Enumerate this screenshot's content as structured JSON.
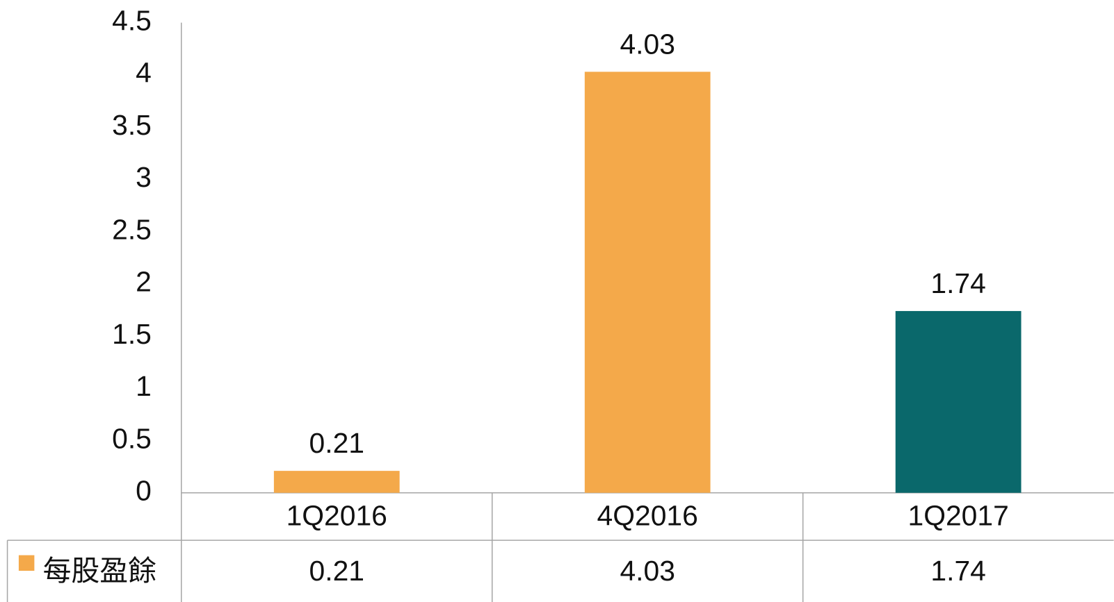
{
  "chart_data": {
    "type": "bar",
    "categories": [
      "1Q2016",
      "4Q2016",
      "1Q2017"
    ],
    "series": [
      {
        "name": "每股盈餘",
        "color": "#f4a94a",
        "colors": [
          "#f4a94a",
          "#f4a94a",
          "#0a686b"
        ],
        "values": [
          0.21,
          4.03,
          1.74
        ]
      }
    ],
    "ylim": [
      0,
      4.5
    ],
    "yticks": [
      0,
      0.5,
      1,
      1.5,
      2,
      2.5,
      3,
      3.5,
      4,
      4.5
    ],
    "grid": false,
    "data_table": true
  }
}
